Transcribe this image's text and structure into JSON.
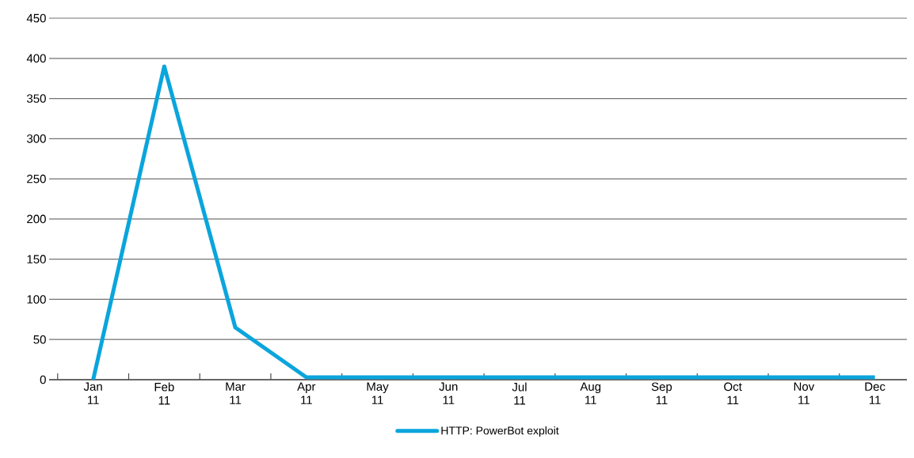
{
  "chart_data": {
    "type": "line",
    "categories": [
      "Jan 11",
      "Feb 11",
      "Mar 11",
      "Apr 11",
      "May 11",
      "Jun 11",
      "Jul 11",
      "Aug 11",
      "Sep 11",
      "Oct 11",
      "Nov 11",
      "Dec 11"
    ],
    "series": [
      {
        "name": "HTTP: PowerBot exploit",
        "color": "#0aa5dc",
        "values": [
          0,
          390,
          65,
          3,
          3,
          3,
          3,
          3,
          3,
          3,
          3,
          3
        ]
      }
    ],
    "ylim": [
      0,
      450
    ],
    "yticks": [
      0,
      50,
      100,
      150,
      200,
      250,
      300,
      350,
      400,
      450
    ],
    "grid": "y",
    "legend": "bottom",
    "marker": "none",
    "line_style": "solid"
  }
}
